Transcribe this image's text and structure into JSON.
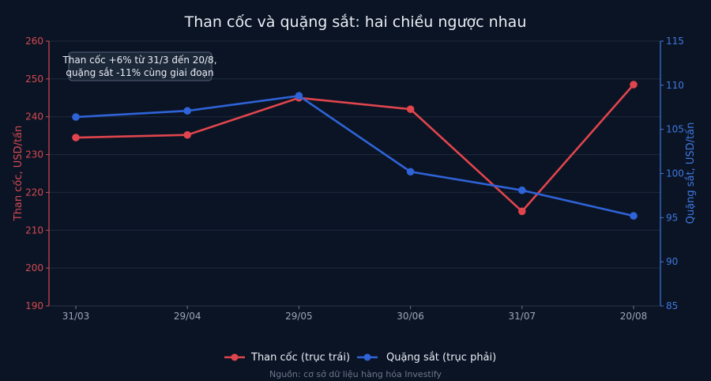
{
  "chart_data": {
    "type": "line",
    "title": "Than cốc và quặng sắt: hai chiều ngược nhau",
    "categories": [
      "31/03",
      "29/04",
      "29/05",
      "30/06",
      "31/07",
      "20/08"
    ],
    "y_left": {
      "label": "Than cốc, USD/tấn",
      "range": [
        190,
        260
      ],
      "ticks": [
        190,
        200,
        210,
        220,
        230,
        240,
        250,
        260
      ]
    },
    "y_right": {
      "label": "Quặng sắt, USD/tấn",
      "range": [
        85,
        115
      ],
      "ticks": [
        85,
        90,
        95,
        100,
        105,
        110,
        115
      ]
    },
    "series": [
      {
        "name": "Than cốc (trục trái)",
        "axis": "left",
        "color": "#e0454d",
        "values": [
          234.5,
          235.2,
          245.0,
          242.0,
          215.0,
          248.5
        ]
      },
      {
        "name": "Quặng sắt (trục phải)",
        "axis": "right",
        "color": "#2f63d8",
        "values": [
          106.4,
          107.1,
          108.8,
          100.2,
          98.1,
          95.2
        ]
      }
    ],
    "annotation": [
      "Than cốc +6% từ 31/3 đến 20/8,",
      "quặng sắt -11% cùng giai đoạn"
    ],
    "legend_position": "bottom-center",
    "grid": true,
    "source": "Nguồn: cơ sở dữ liệu hàng hóa Investify"
  }
}
